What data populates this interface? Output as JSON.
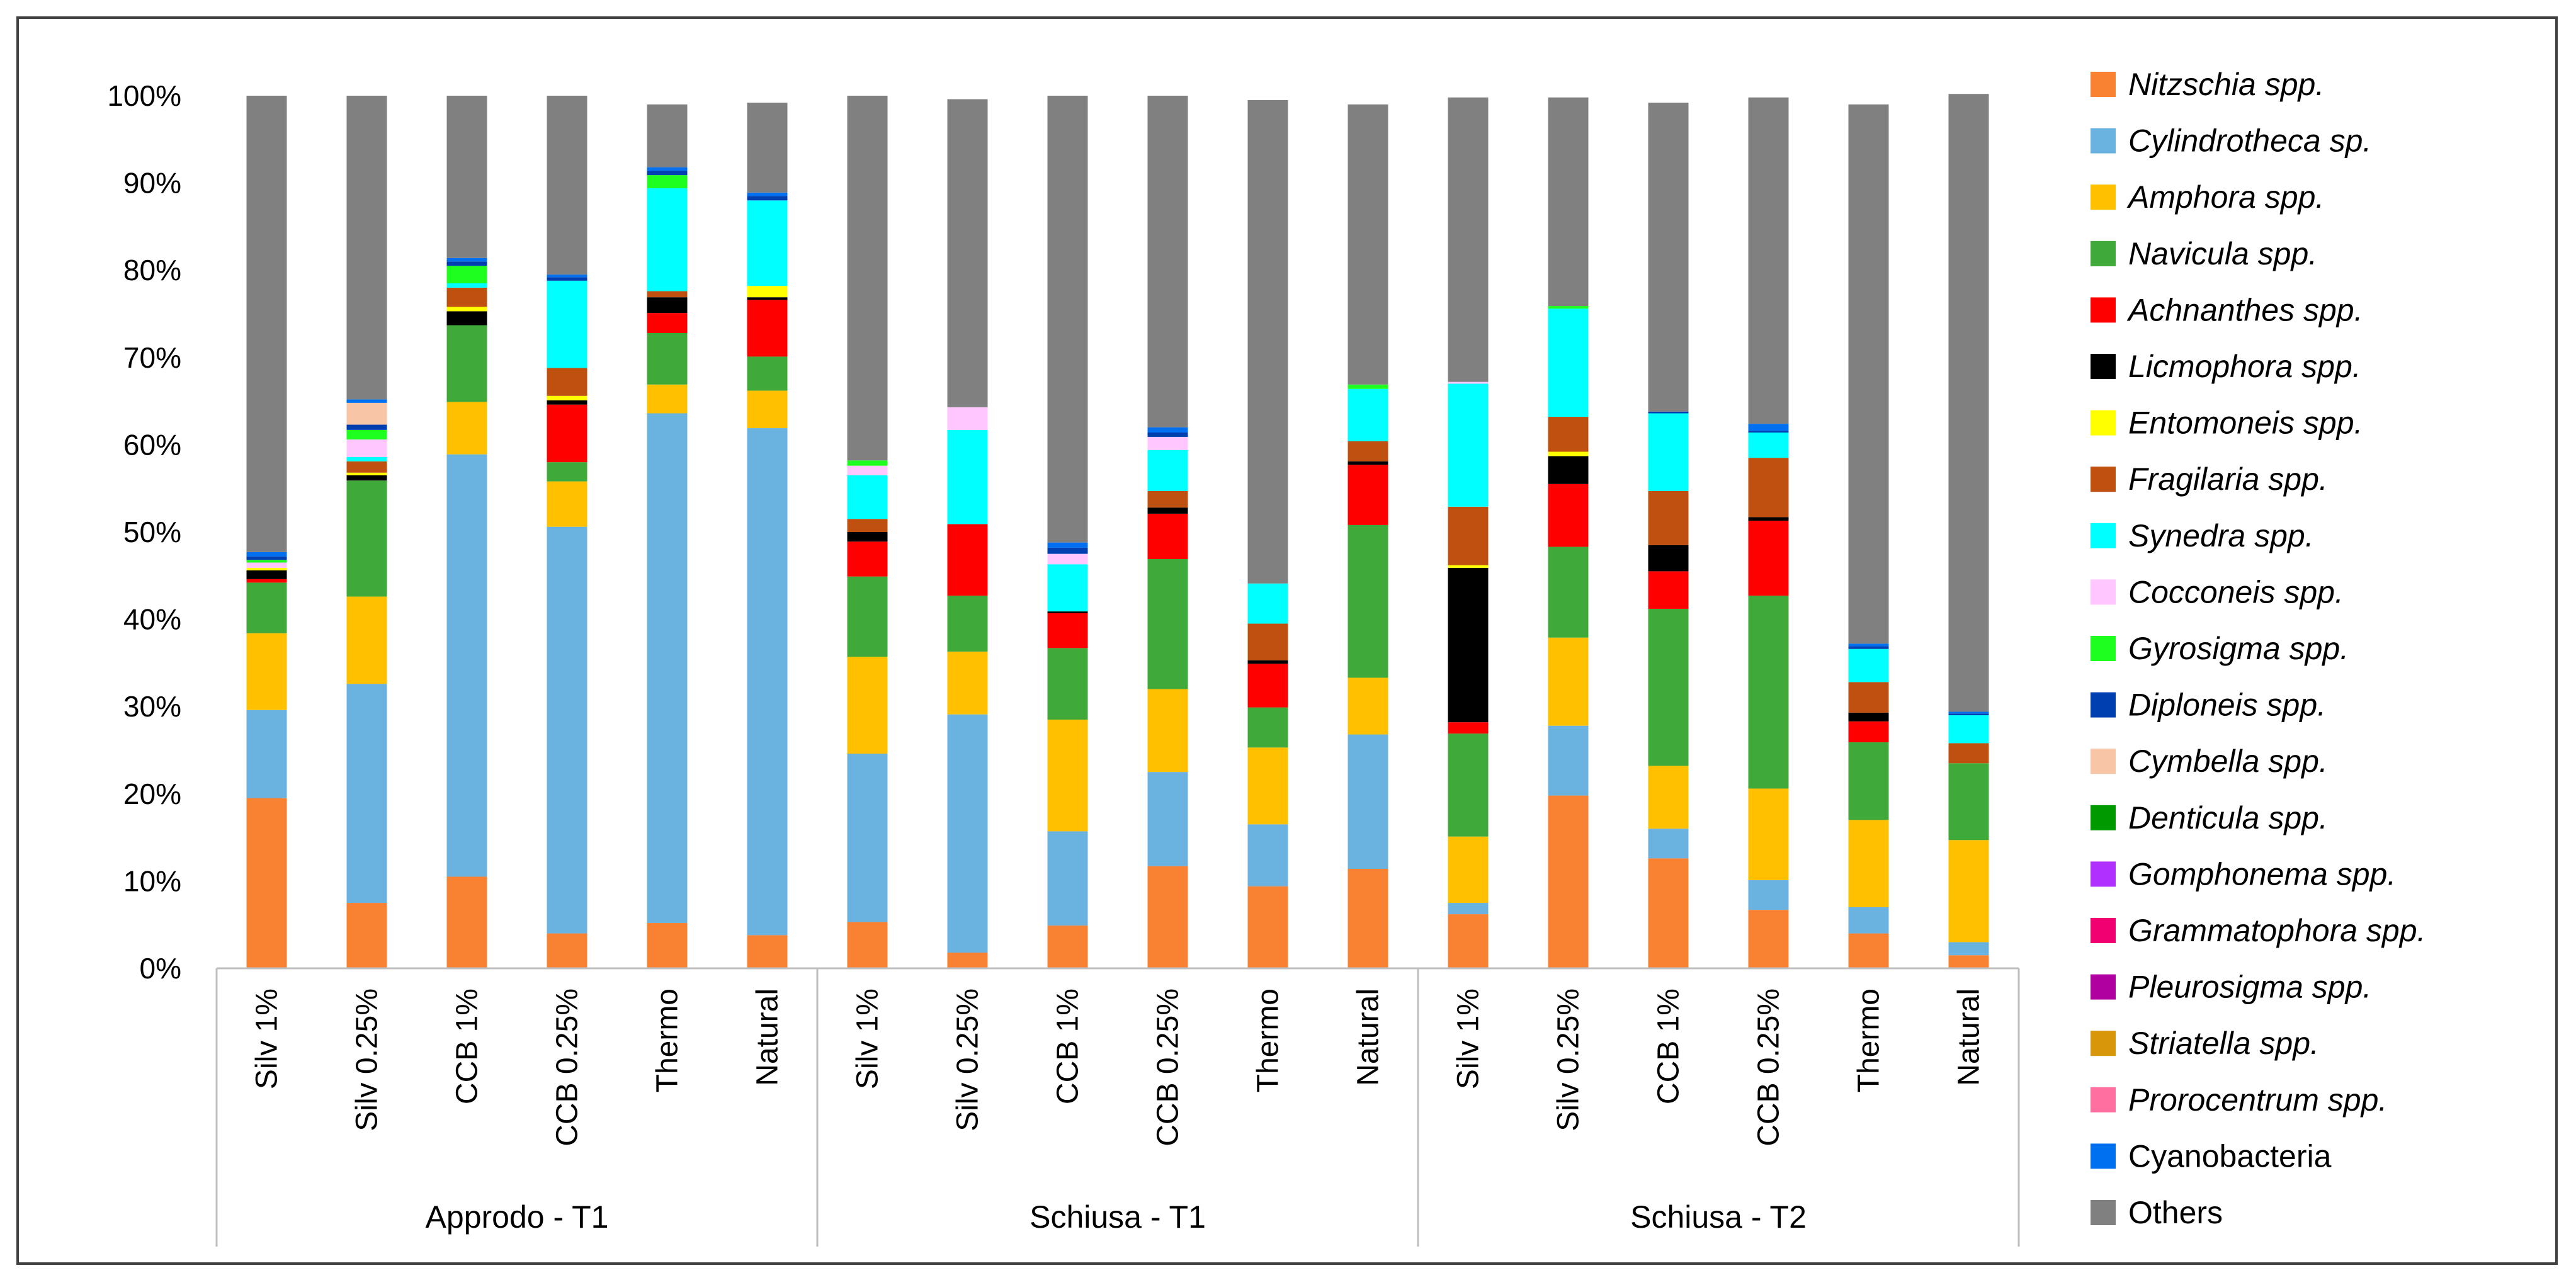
{
  "chart_data": {
    "type": "stacked_bar_100",
    "ylim": [
      0,
      100
    ],
    "yticks": [
      "0%",
      "10%",
      "20%",
      "30%",
      "40%",
      "50%",
      "60%",
      "70%",
      "80%",
      "90%",
      "100%"
    ],
    "groups": [
      {
        "label": "Approdo - T1",
        "categories": [
          "Silv 1%",
          "Silv 0.25%",
          "CCB 1%",
          "CCB 0.25%",
          "Thermo",
          "Natural"
        ]
      },
      {
        "label": "Schiusa - T1",
        "categories": [
          "Silv 1%",
          "Silv 0.25%",
          "CCB 1%",
          "CCB 0.25%",
          "Thermo",
          "Natural"
        ]
      },
      {
        "label": "Schiusa - T2",
        "categories": [
          "Silv 1%",
          "Silv 0.25%",
          "CCB 1%",
          "CCB 0.25%",
          "Thermo",
          "Natural"
        ]
      }
    ],
    "series": [
      {
        "name": "Nitzschia spp.",
        "italic": true,
        "color": "#F98232",
        "values": [
          19.5,
          7.5,
          10.5,
          4.0,
          5.2,
          3.8,
          5.3,
          1.8,
          4.9,
          11.7,
          9.4,
          11.4,
          6.2,
          19.8,
          12.6,
          6.7,
          4.0,
          1.5
        ]
      },
      {
        "name": "Cylindrotheca sp.",
        "italic": true,
        "color": "#6AB2E0",
        "values": [
          10.1,
          25.1,
          48.4,
          46.6,
          58.4,
          58.1,
          19.3,
          27.3,
          10.8,
          10.8,
          7.1,
          15.4,
          1.3,
          8.0,
          3.4,
          3.4,
          3.0,
          1.5
        ]
      },
      {
        "name": "Amphora spp.",
        "italic": true,
        "color": "#FFC000",
        "values": [
          8.8,
          10.0,
          6.0,
          5.2,
          3.3,
          4.3,
          11.1,
          7.2,
          12.8,
          9.5,
          8.8,
          6.5,
          7.6,
          10.1,
          7.2,
          10.5,
          10.0,
          11.7
        ]
      },
      {
        "name": "Navicula spp.",
        "italic": true,
        "color": "#3FAA3A",
        "values": [
          5.8,
          13.3,
          8.8,
          2.2,
          5.9,
          3.9,
          9.2,
          6.4,
          8.2,
          14.9,
          4.6,
          17.5,
          11.8,
          10.4,
          18.0,
          22.1,
          8.9,
          8.8
        ]
      },
      {
        "name": "Achnanthes spp.",
        "italic": true,
        "color": "#FF0000",
        "values": [
          0.4,
          0.0,
          0.0,
          6.6,
          2.3,
          6.5,
          4.0,
          8.2,
          4.0,
          5.2,
          5.0,
          6.9,
          1.3,
          7.2,
          4.3,
          8.6,
          2.4,
          0.0
        ]
      },
      {
        "name": "Licmophora spp.",
        "italic": true,
        "color": "#000000",
        "values": [
          1.0,
          0.6,
          1.6,
          0.5,
          1.8,
          0.3,
          1.1,
          0.0,
          0.2,
          0.7,
          0.4,
          0.4,
          17.7,
          3.2,
          3.0,
          0.4,
          1.0,
          0.0
        ]
      },
      {
        "name": "Entomoneis spp.",
        "italic": true,
        "color": "#FFFF00",
        "values": [
          0.3,
          0.3,
          0.5,
          0.5,
          0.0,
          1.3,
          0.0,
          0.0,
          0.0,
          0.0,
          0.0,
          0.0,
          0.3,
          0.5,
          0.0,
          0.0,
          0.0,
          0.0
        ]
      },
      {
        "name": "Fragilaria spp.",
        "italic": true,
        "color": "#C0500F",
        "values": [
          0.0,
          1.3,
          2.2,
          3.2,
          0.7,
          0.0,
          1.5,
          0.0,
          0.0,
          1.9,
          4.2,
          2.3,
          6.7,
          4.0,
          6.2,
          6.8,
          3.5,
          2.3
        ]
      },
      {
        "name": "Synedra spp.",
        "italic": true,
        "color": "#00FFFF",
        "values": [
          0.0,
          0.5,
          0.5,
          10.0,
          11.8,
          9.8,
          5.0,
          10.8,
          5.4,
          4.7,
          4.6,
          6.0,
          14.1,
          12.4,
          8.9,
          2.9,
          3.8,
          3.2
        ]
      },
      {
        "name": "Cocconeis spp.",
        "italic": true,
        "color": "#FFC6FF",
        "values": [
          0.6,
          2.0,
          0.0,
          0.0,
          0.0,
          0.0,
          1.1,
          2.6,
          1.2,
          1.5,
          0.0,
          0.0,
          0.2,
          0.0,
          0.0,
          0.0,
          0.0,
          0.0
        ]
      },
      {
        "name": "Gyrosigma spp.",
        "italic": true,
        "color": "#1FFF1F",
        "values": [
          0.3,
          1.1,
          2.0,
          0.0,
          1.5,
          0.0,
          0.6,
          0.0,
          0.0,
          0.0,
          0.0,
          0.5,
          0.0,
          0.3,
          0.0,
          0.0,
          0.0,
          0.0
        ]
      },
      {
        "name": "Diploneis spp.",
        "italic": true,
        "color": "#003FAF",
        "values": [
          0.4,
          0.6,
          0.5,
          0.4,
          0.5,
          0.5,
          0.0,
          0.0,
          0.7,
          0.5,
          0.0,
          0.0,
          0.0,
          0.0,
          0.2,
          0.2,
          0.3,
          0.2
        ]
      },
      {
        "name": "Cymbella spp.",
        "italic": true,
        "color": "#F8C5A7",
        "values": [
          0.0,
          2.5,
          0.0,
          0.0,
          0.0,
          0.0,
          0.0,
          0.0,
          0.0,
          0.0,
          0.0,
          0.0,
          0.0,
          0.0,
          0.0,
          0.0,
          0.0,
          0.0
        ]
      },
      {
        "name": "Denticula spp.",
        "italic": true,
        "color": "#009900",
        "values": [
          0.0,
          0.0,
          0.0,
          0.0,
          0.0,
          0.0,
          0.0,
          0.0,
          0.0,
          0.0,
          0.0,
          0.0,
          0.0,
          0.0,
          0.0,
          0.0,
          0.0,
          0.0
        ]
      },
      {
        "name": "Gomphonema spp.",
        "italic": true,
        "color": "#B030FF",
        "values": [
          0.0,
          0.0,
          0.0,
          0.0,
          0.0,
          0.0,
          0.0,
          0.0,
          0.0,
          0.0,
          0.0,
          0.0,
          0.0,
          0.0,
          0.0,
          0.0,
          0.0,
          0.0
        ]
      },
      {
        "name": "Grammatophora spp.",
        "italic": true,
        "color": "#F00070",
        "values": [
          0.0,
          0.0,
          0.0,
          0.0,
          0.0,
          0.0,
          0.0,
          0.0,
          0.0,
          0.0,
          0.0,
          0.0,
          0.0,
          0.0,
          0.0,
          0.0,
          0.0,
          0.0
        ]
      },
      {
        "name": "Pleurosigma spp.",
        "italic": true,
        "color": "#B0009F",
        "values": [
          0.0,
          0.0,
          0.0,
          0.0,
          0.0,
          0.0,
          0.0,
          0.0,
          0.0,
          0.0,
          0.0,
          0.0,
          0.0,
          0.0,
          0.0,
          0.0,
          0.0,
          0.0
        ]
      },
      {
        "name": "Striatella spp.",
        "italic": true,
        "color": "#D8970A",
        "values": [
          0.0,
          0.0,
          0.0,
          0.0,
          0.0,
          0.0,
          0.0,
          0.0,
          0.0,
          0.0,
          0.0,
          0.0,
          0.0,
          0.0,
          0.0,
          0.0,
          0.0,
          0.0
        ]
      },
      {
        "name": "Prorocentrum spp.",
        "italic": true,
        "color": "#FF6F9F",
        "values": [
          0.0,
          0.0,
          0.0,
          0.0,
          0.0,
          0.0,
          0.0,
          0.0,
          0.0,
          0.0,
          0.0,
          0.0,
          0.0,
          0.0,
          0.0,
          0.0,
          0.0,
          0.0
        ]
      },
      {
        "name": "Cyanobacteria",
        "italic": false,
        "color": "#0070F0",
        "values": [
          0.5,
          0.4,
          0.4,
          0.3,
          0.4,
          0.4,
          0.0,
          0.0,
          0.6,
          0.6,
          0.0,
          0.0,
          0.0,
          0.0,
          0.0,
          0.8,
          0.3,
          0.2
        ]
      },
      {
        "name": "Others",
        "italic": false,
        "color": "#808080",
        "values": [
          52.3,
          34.8,
          18.6,
          20.5,
          7.2,
          10.3,
          41.8,
          35.3,
          51.2,
          38.0,
          55.4,
          32.1,
          32.6,
          23.9,
          35.4,
          37.4,
          61.8,
          70.8
        ]
      }
    ]
  }
}
